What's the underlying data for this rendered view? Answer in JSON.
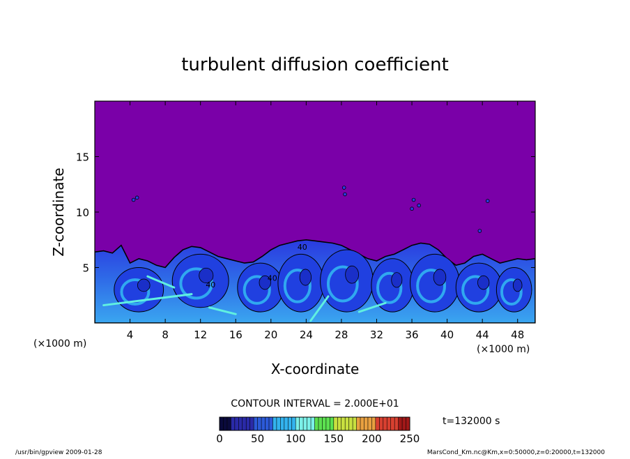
{
  "chart_data": {
    "type": "heatmap",
    "title": "turbulent diffusion coefficient",
    "xlabel": "X-coordinate",
    "ylabel": "Z-coordinate",
    "x_unit": "(×1000 m)",
    "y_unit": "(×1000 m)",
    "xlim": [
      0,
      50
    ],
    "ylim": [
      0,
      20
    ],
    "x_ticks": [
      4,
      8,
      12,
      16,
      20,
      24,
      28,
      32,
      36,
      40,
      44,
      48
    ],
    "y_ticks": [
      5,
      10,
      15
    ],
    "contour_label": "40",
    "contour_interval_text": "CONTOUR INTERVAL = 2.000E+01",
    "time_text": "t=132000 s",
    "colorbar": {
      "min": 0,
      "max": 250,
      "ticks": [
        0,
        50,
        100,
        150,
        200,
        250
      ],
      "colors": [
        "#0a0a3c",
        "#2a2aa8",
        "#2c5ad8",
        "#33b3ee",
        "#7cf0e8",
        "#5ce050",
        "#c8e040",
        "#e8a040",
        "#d84030",
        "#a01818"
      ]
    },
    "colors": {
      "background_field": "#7a00a8",
      "turbulent_low": "#2040e0",
      "turbulent_mid": "#30a8f0",
      "turbulent_high": "#60f0e0"
    }
  },
  "footer": {
    "left": "/usr/bin/gpview   2009-01-28",
    "right": "MarsCond_Km.nc@Km,x=0:50000,z=0:20000,t=132000"
  }
}
